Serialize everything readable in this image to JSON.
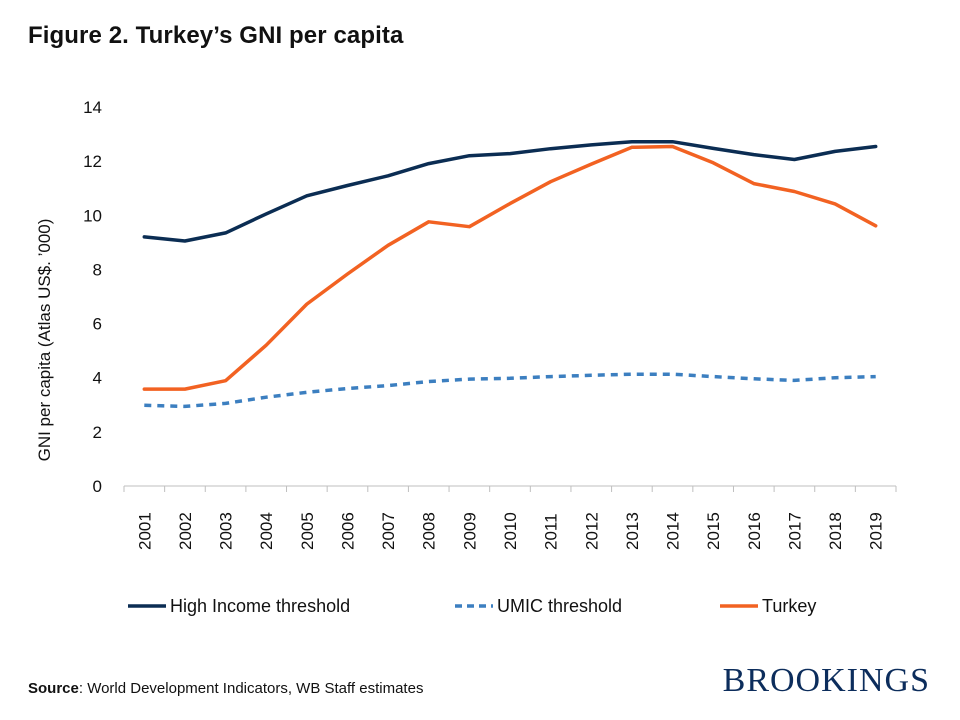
{
  "title": "Figure 2. Turkey’s GNI per capita",
  "source_label": "Source",
  "source_text": ": World Development Indicators, WB Staff estimates",
  "brand": "BROOKINGS",
  "chart_data": {
    "type": "line",
    "title": "Figure 2. Turkey’s GNI per capita",
    "xlabel": "",
    "ylabel": "GNI per capita (Atlas US$. ’000)",
    "ylim": [
      0,
      14
    ],
    "yticks": [
      0,
      2,
      4,
      6,
      8,
      10,
      12,
      14
    ],
    "grid": false,
    "legend": "bottom",
    "categories": [
      "2001",
      "2002",
      "2003",
      "2004",
      "2005",
      "2006",
      "2007",
      "2008",
      "2009",
      "2010",
      "2011",
      "2012",
      "2013",
      "2014",
      "2015",
      "2016",
      "2017",
      "2018",
      "2019"
    ],
    "series": [
      {
        "name": "High Income threshold",
        "color": "#0b2d53",
        "dash": "solid",
        "values": [
          9.2,
          9.05,
          9.35,
          10.05,
          10.72,
          11.1,
          11.46,
          11.91,
          12.2,
          12.28,
          12.46,
          12.6,
          12.72,
          12.72,
          12.47,
          12.24,
          12.06,
          12.36,
          12.54
        ]
      },
      {
        "name": "UMIC threshold",
        "color": "#3c7fc0",
        "dash": "dashed",
        "values": [
          2.98,
          2.94,
          3.05,
          3.28,
          3.46,
          3.6,
          3.71,
          3.86,
          3.95,
          3.98,
          4.04,
          4.09,
          4.13,
          4.13,
          4.04,
          3.96,
          3.9,
          4.0,
          4.04
        ]
      },
      {
        "name": "Turkey",
        "color": "#f26222",
        "dash": "solid",
        "values": [
          3.58,
          3.58,
          3.89,
          5.2,
          6.72,
          7.83,
          8.89,
          9.76,
          9.58,
          10.43,
          11.24,
          11.89,
          12.51,
          12.54,
          11.94,
          11.17,
          10.88,
          10.42,
          9.61
        ]
      }
    ]
  }
}
